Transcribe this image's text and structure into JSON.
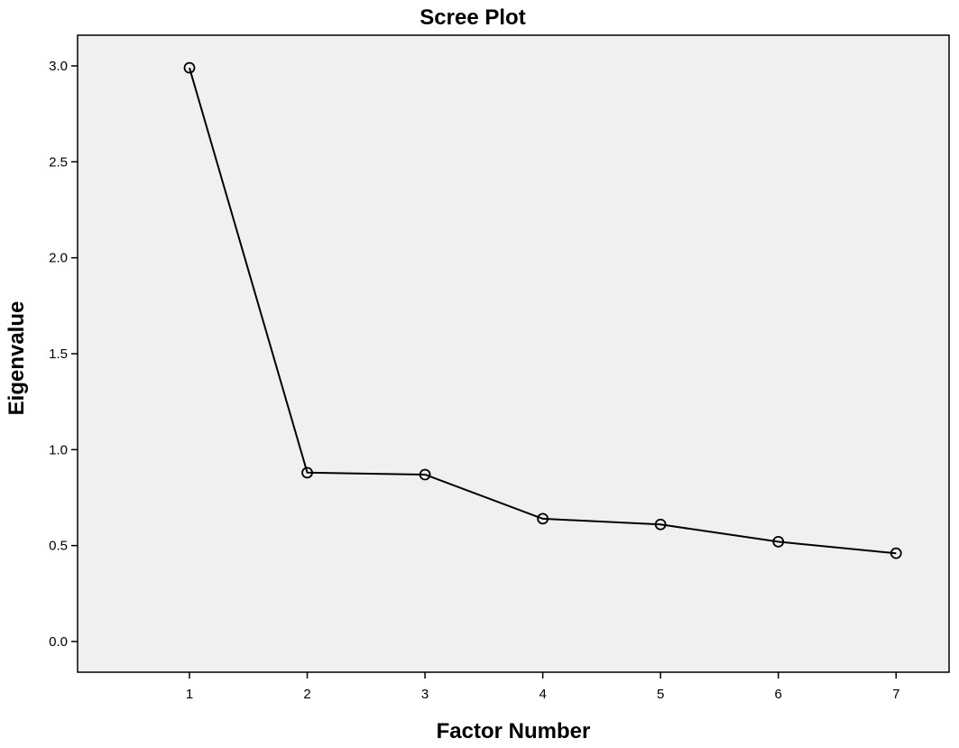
{
  "chart_data": {
    "type": "line",
    "title": "Scree Plot",
    "xlabel": "Factor Number",
    "ylabel": "Eigenvalue",
    "x": [
      1,
      2,
      3,
      4,
      5,
      6,
      7
    ],
    "y": [
      2.99,
      0.88,
      0.87,
      0.64,
      0.61,
      0.52,
      0.46
    ],
    "x_ticks": [
      "1",
      "2",
      "3",
      "4",
      "5",
      "6",
      "7"
    ],
    "y_ticks": [
      "0.0",
      "0.5",
      "1.0",
      "1.5",
      "2.0",
      "2.5",
      "3.0"
    ],
    "ylim": [
      -0.16,
      3.16
    ],
    "xlim": [
      0.05,
      7.45
    ],
    "grid": false,
    "marker": "open-circle",
    "colors": {
      "plot_background": "#f0f0f0",
      "line": "#000000",
      "frame": "#000000"
    }
  }
}
